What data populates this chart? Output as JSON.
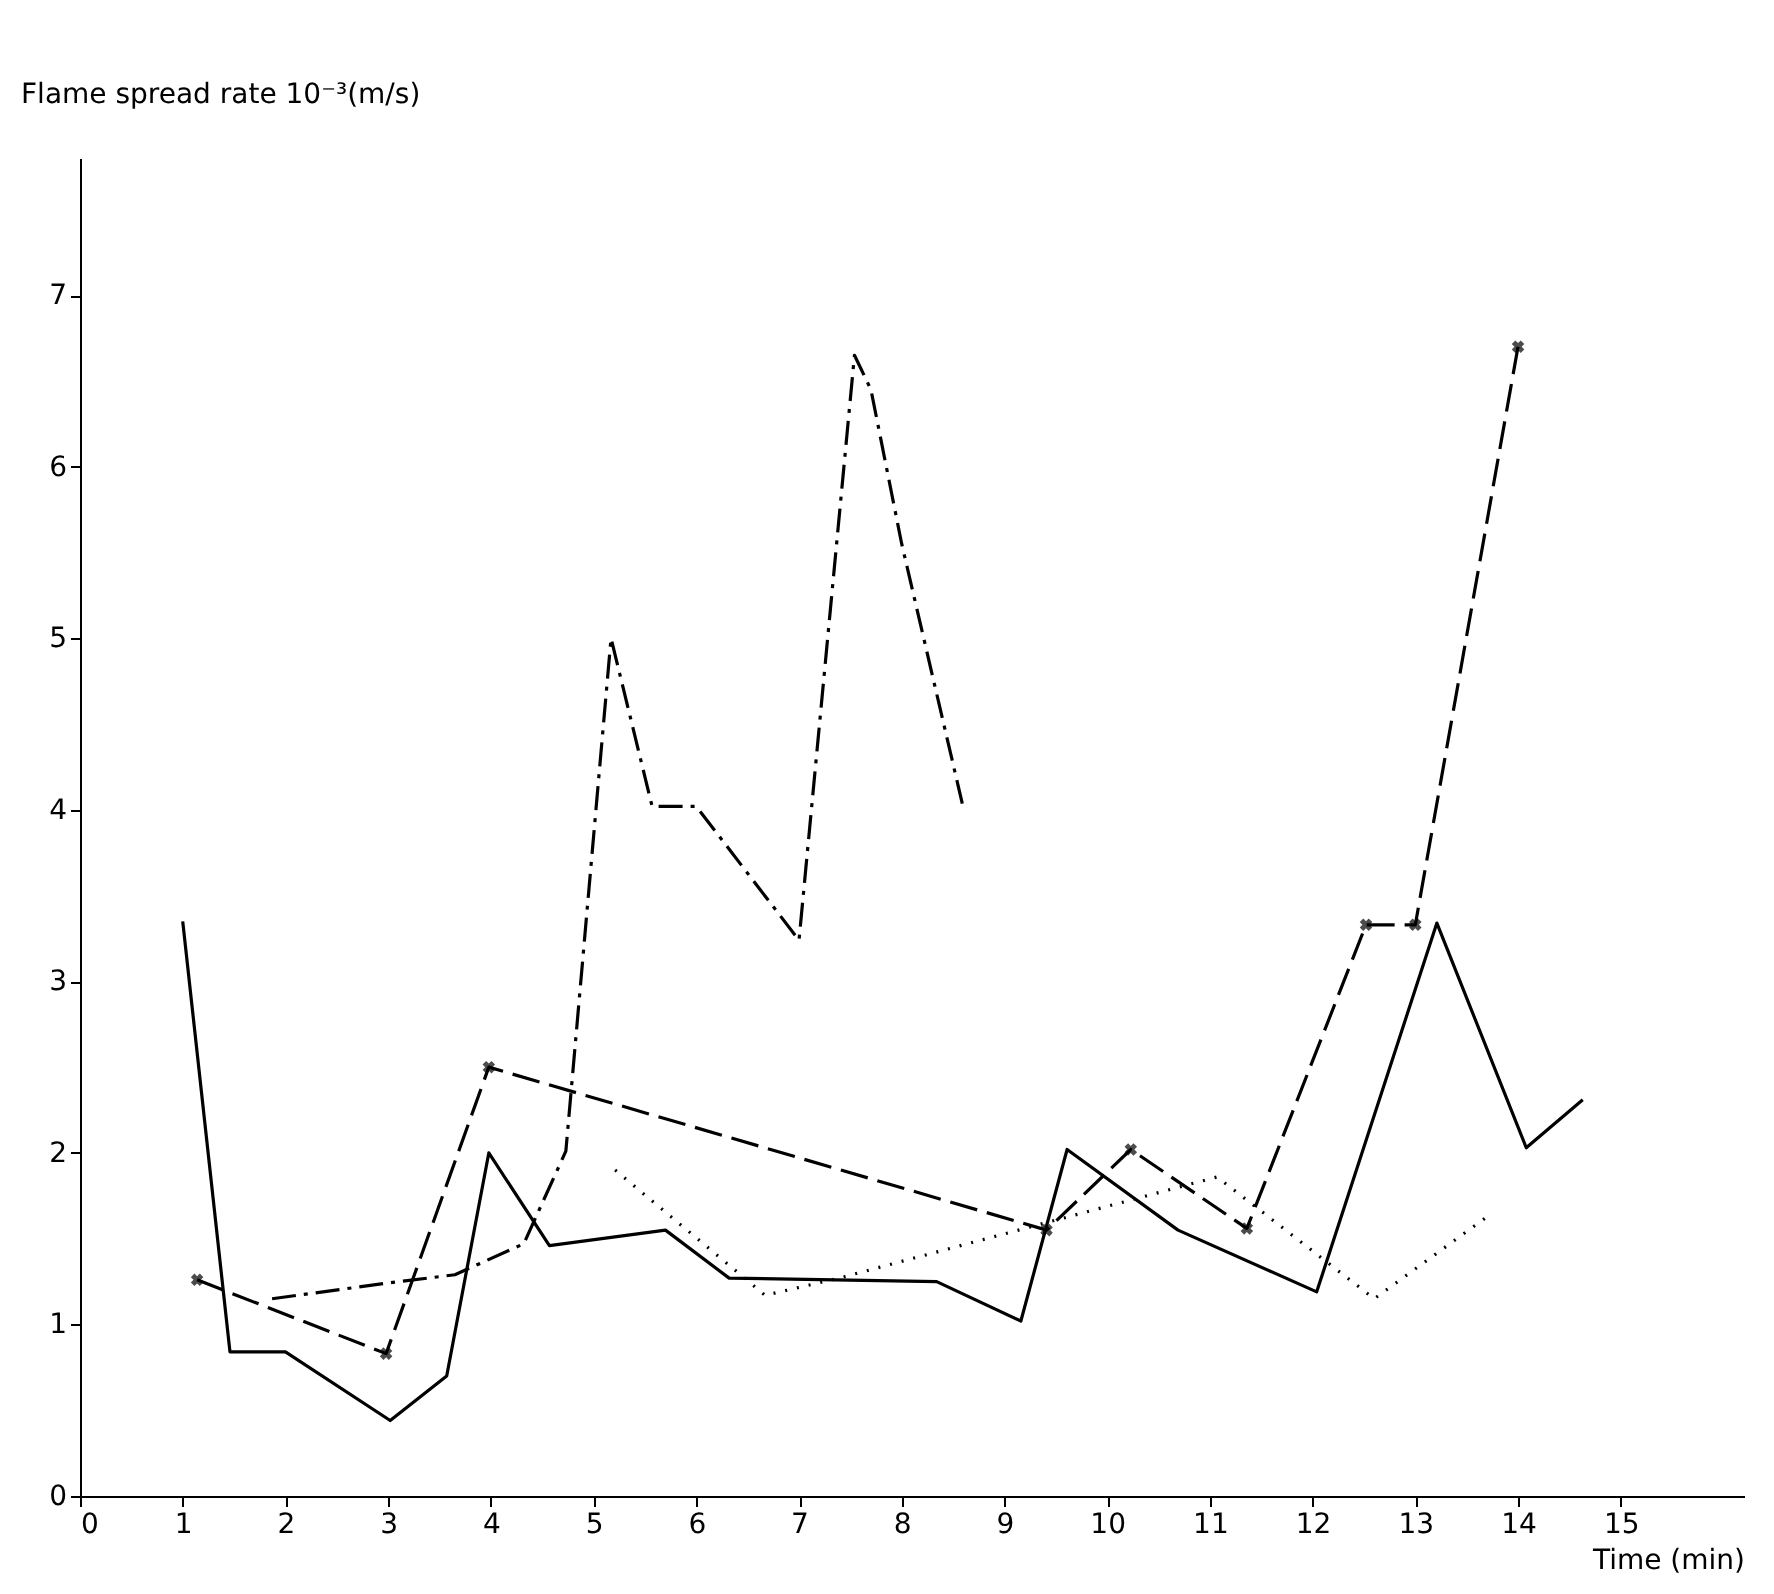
{
  "chart_data": {
    "type": "line",
    "ylabel": "Flame spread rate 10⁻³(m/s)",
    "xlabel": "Time (min)",
    "xlim": [
      0,
      16.2
    ],
    "xticks": [
      0,
      1,
      2,
      3,
      4,
      5,
      6,
      7,
      8,
      9,
      10,
      11,
      12,
      13,
      14,
      15
    ],
    "ylim": [
      0,
      7.8
    ],
    "yticks": [
      0,
      1,
      2,
      3,
      4,
      5,
      6,
      7
    ],
    "grid": false,
    "series": [
      {
        "color": "#000000",
        "line_style": "solid",
        "marker": "none",
        "x": [
          1.0,
          1.46,
          2.0,
          3.02,
          3.57,
          3.98,
          4.57,
          5.7,
          6.32,
          8.34,
          9.16,
          9.61,
          10.69,
          12.04,
          13.21,
          14.08,
          14.63
        ],
        "values": [
          3.35,
          0.84,
          0.84,
          0.44,
          0.7,
          2.0,
          1.46,
          1.55,
          1.27,
          1.25,
          1.02,
          2.02,
          1.55,
          1.19,
          3.34,
          2.03,
          2.31
        ]
      },
      {
        "color": "#000000",
        "line_style": "dashed",
        "marker": "cross",
        "x": [
          1.14,
          2.98,
          3.98,
          9.41,
          10.23,
          11.36,
          12.52,
          13.0,
          14.0
        ],
        "values": [
          1.26,
          0.83,
          2.5,
          1.55,
          2.02,
          1.56,
          3.33,
          3.33,
          6.7
        ]
      },
      {
        "color": "#000000",
        "line_style": "dashdot",
        "marker": "none",
        "x": [
          1.87,
          2.98,
          3.65,
          4.32,
          4.73,
          5.17,
          5.57,
          6.0,
          7.0,
          7.54,
          7.7,
          8.0,
          8.6
        ],
        "values": [
          1.15,
          1.24,
          1.29,
          1.47,
          2.01,
          5.0,
          4.02,
          4.02,
          3.24,
          6.65,
          6.45,
          5.55,
          4.01
        ]
      },
      {
        "color": "#000000",
        "line_style": "dotted",
        "marker": "none",
        "x": [
          5.21,
          6.67,
          7.39,
          11.07,
          12.6,
          13.68
        ],
        "values": [
          1.9,
          1.17,
          1.27,
          1.86,
          1.15,
          1.62
        ]
      }
    ]
  }
}
